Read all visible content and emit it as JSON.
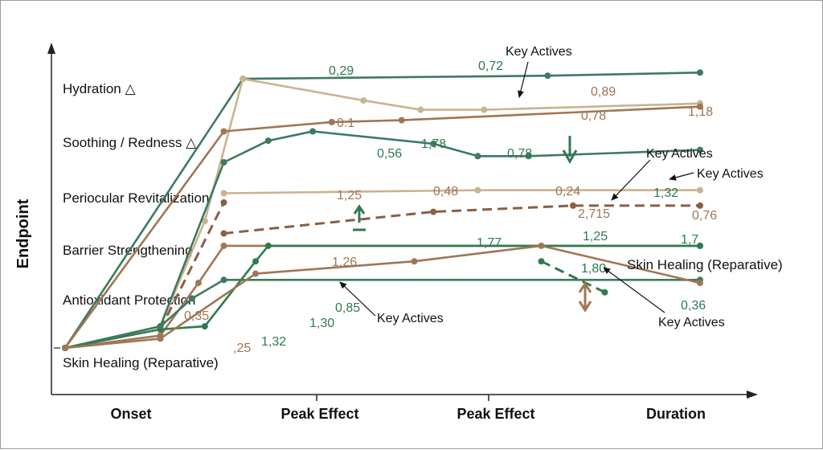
{
  "chart_data": {
    "type": "line",
    "title": "",
    "xlabel": "",
    "ylabel": "Endpoint",
    "x_ticks": [
      "Onset",
      "Peak Effect",
      "Peak Effect",
      "Duration"
    ],
    "categories": [
      "Hydration △",
      "Soothing / Redness △",
      "Periocular Revitalization",
      "Barrier Strengthening",
      "Antioxidant Protection",
      "Skin Healing (Reparative)"
    ],
    "colors": {
      "dark_green": "#3e7a5e",
      "mid_green": "#2f7a50",
      "tan": "#c8b48f",
      "brown": "#a07655",
      "dark_brown": "#8a5f44"
    },
    "series": [
      {
        "color": "#3e7a5e",
        "style": "solid",
        "points": [
          [
            0.0,
            0.0
          ],
          [
            2.8,
            4.35
          ],
          [
            7.6,
            4.4
          ],
          [
            10.0,
            4.45
          ]
        ]
      },
      {
        "color": "#c8b48f",
        "style": "solid",
        "points": [
          [
            0.0,
            0.0
          ],
          [
            1.5,
            0.35
          ],
          [
            2.2,
            2.05
          ],
          [
            2.8,
            4.35
          ],
          [
            4.7,
            4.0
          ],
          [
            5.6,
            3.85
          ],
          [
            6.6,
            3.85
          ],
          [
            10.0,
            3.95
          ]
        ]
      },
      {
        "color": "#a07655",
        "style": "solid",
        "points": [
          [
            0.0,
            0.0
          ],
          [
            2.5,
            3.5
          ],
          [
            4.2,
            3.65
          ],
          [
            5.3,
            3.68
          ],
          [
            10.0,
            3.9
          ]
        ]
      },
      {
        "color": "#3e7a5e",
        "style": "solid",
        "points": [
          [
            0.0,
            0.0
          ],
          [
            1.5,
            0.35
          ],
          [
            2.5,
            3.0
          ],
          [
            3.2,
            3.35
          ],
          [
            3.9,
            3.5
          ],
          [
            5.8,
            3.3
          ],
          [
            6.5,
            3.1
          ],
          [
            7.3,
            3.1
          ],
          [
            10.0,
            3.2
          ]
        ]
      },
      {
        "color": "#c8b48f",
        "style": "solid",
        "points": [
          [
            2.5,
            2.5
          ],
          [
            6.5,
            2.55
          ],
          [
            10.0,
            2.55
          ]
        ]
      },
      {
        "color": "#8a5f44",
        "style": "dashed",
        "points": [
          [
            1.5,
            0.3
          ],
          [
            2.5,
            2.35
          ]
        ]
      },
      {
        "color": "#8a5f44",
        "style": "dashed",
        "points": [
          [
            2.5,
            1.85
          ],
          [
            5.8,
            2.2
          ],
          [
            8.0,
            2.3
          ],
          [
            10.0,
            2.3
          ]
        ]
      },
      {
        "color": "#a07655",
        "style": "solid",
        "points": [
          [
            0.0,
            0.0
          ],
          [
            1.5,
            0.2
          ],
          [
            2.1,
            1.05
          ],
          [
            2.5,
            1.65
          ],
          [
            10.0,
            1.65
          ]
        ]
      },
      {
        "color": "#2f7a50",
        "style": "solid",
        "points": [
          [
            0.0,
            0.0
          ],
          [
            1.5,
            0.3
          ],
          [
            2.2,
            0.35
          ],
          [
            3.0,
            1.4
          ],
          [
            3.2,
            1.65
          ],
          [
            10.0,
            1.65
          ]
        ]
      },
      {
        "color": "#3e7a5e",
        "style": "solid",
        "points": [
          [
            0.0,
            0.0
          ],
          [
            1.5,
            0.35
          ],
          [
            2.0,
            0.8
          ],
          [
            2.5,
            1.1
          ],
          [
            10.0,
            1.1
          ]
        ]
      },
      {
        "color": "#a07655",
        "style": "solid",
        "points": [
          [
            0.0,
            0.0
          ],
          [
            1.5,
            0.15
          ],
          [
            3.0,
            1.2
          ],
          [
            5.5,
            1.4
          ],
          [
            7.5,
            1.65
          ],
          [
            10.0,
            1.05
          ]
        ]
      },
      {
        "color": "#2f7a50",
        "style": "dashed",
        "points": [
          [
            7.5,
            1.4
          ],
          [
            8.5,
            0.9
          ]
        ]
      }
    ],
    "data_labels": [
      {
        "text": "0,29",
        "color": "#2f7a50"
      },
      {
        "text": "0,72",
        "color": "#2f7a50"
      },
      {
        "text": "0,89",
        "color": "#a07655"
      },
      {
        "text": "0,78",
        "color": "#a07655"
      },
      {
        "text": "1,18",
        "color": "#a07655"
      },
      {
        "text": "0.1",
        "color": "#a07655"
      },
      {
        "text": "0,56",
        "color": "#2f7a50"
      },
      {
        "text": "1,78",
        "color": "#2f7a50"
      },
      {
        "text": "0,78",
        "color": "#2f7a50"
      },
      {
        "text": "1,25",
        "color": "#a07655"
      },
      {
        "text": "0,48",
        "color": "#a07655"
      },
      {
        "text": "0,24",
        "color": "#a07655"
      },
      {
        "text": "1,32",
        "color": "#2f7a50"
      },
      {
        "text": "2,715",
        "color": "#a07655"
      },
      {
        "text": "0,76",
        "color": "#a07655"
      },
      {
        "text": "1,77",
        "color": "#2f7a50"
      },
      {
        "text": "1,25",
        "color": "#2f7a50"
      },
      {
        "text": "1,7",
        "color": "#2f7a50"
      },
      {
        "text": "1,26",
        "color": "#a07655"
      },
      {
        "text": "1,30",
        "color": "#2f7a50"
      },
      {
        "text": "0,85",
        "color": "#2f7a50"
      },
      {
        "text": "0,35",
        "color": "#a07655"
      },
      {
        "text": "1,32",
        "color": "#2f7a50"
      },
      {
        "text": ",25",
        "color": "#a07655"
      },
      {
        "text": "1,80",
        "color": "#2f7a50"
      },
      {
        "text": "0,36",
        "color": "#2f7a50"
      }
    ],
    "annotations": [
      "Key Actives",
      "Key Actives",
      "Key Actives",
      "Key Actives",
      "Key Actives"
    ],
    "inline_labels": [
      "Skin Healing (Reparative)"
    ],
    "grid": false,
    "legend": "none"
  }
}
